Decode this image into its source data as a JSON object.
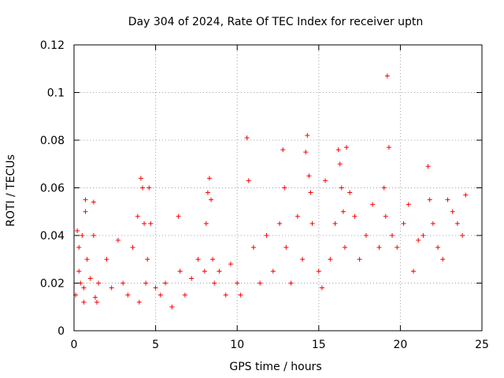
{
  "chart_data": {
    "type": "scatter",
    "title": "Day 304 of 2024, Rate Of TEC Index for receiver uptn",
    "xlabel": "GPS time / hours",
    "ylabel": "ROTI / TECUs",
    "xlim": [
      0,
      25
    ],
    "ylim": [
      0,
      0.12
    ],
    "x_ticks": [
      0,
      5,
      10,
      15,
      20,
      25
    ],
    "x_tick_labels": [
      "0",
      "5",
      "10",
      "15",
      "20",
      "25"
    ],
    "y_ticks": [
      0,
      0.02,
      0.04,
      0.06,
      0.08,
      0.1,
      0.12
    ],
    "y_tick_labels": [
      "0",
      "0.02",
      "0.04",
      "0.06",
      "0.08",
      "0.1",
      "0.12"
    ],
    "grid": true,
    "marker": "+",
    "series": [
      {
        "name": "ROTI",
        "color": "#ff0000",
        "x": [
          0.1,
          0.2,
          0.3,
          0.4,
          0.5,
          0.6,
          0.7,
          0.8,
          1.0,
          1.2,
          1.4,
          0.3,
          0.6,
          0.7,
          1.2,
          1.3,
          1.5,
          2.0,
          2.3,
          2.7,
          3.0,
          3.3,
          3.6,
          3.9,
          4.0,
          4.1,
          4.2,
          4.3,
          4.4,
          4.5,
          4.6,
          4.7,
          5.0,
          5.3,
          5.6,
          6.0,
          6.4,
          6.5,
          6.8,
          7.2,
          7.6,
          8.0,
          8.1,
          8.2,
          8.3,
          8.4,
          8.5,
          8.6,
          8.9,
          9.3,
          9.6,
          10.0,
          10.2,
          10.6,
          10.7,
          11.0,
          11.4,
          11.8,
          12.2,
          12.6,
          12.8,
          12.9,
          13.0,
          13.3,
          13.7,
          14.0,
          14.2,
          14.3,
          14.4,
          14.5,
          14.6,
          15.0,
          15.2,
          15.4,
          15.7,
          16.0,
          16.2,
          16.3,
          16.4,
          16.5,
          16.6,
          16.7,
          16.9,
          17.2,
          17.5,
          17.9,
          18.3,
          18.7,
          19.0,
          19.1,
          19.2,
          19.3,
          19.5,
          19.8,
          20.2,
          20.5,
          20.8,
          21.1,
          21.4,
          21.7,
          21.8,
          22.0,
          22.3,
          22.6,
          22.9,
          23.2,
          23.5,
          23.8,
          24.0
        ],
        "y": [
          0.015,
          0.042,
          0.035,
          0.02,
          0.04,
          0.018,
          0.055,
          0.03,
          0.022,
          0.054,
          0.012,
          0.025,
          0.012,
          0.05,
          0.04,
          0.014,
          0.02,
          0.03,
          0.018,
          0.038,
          0.02,
          0.015,
          0.035,
          0.048,
          0.012,
          0.064,
          0.06,
          0.045,
          0.02,
          0.03,
          0.06,
          0.045,
          0.018,
          0.015,
          0.02,
          0.01,
          0.048,
          0.025,
          0.015,
          0.022,
          0.03,
          0.025,
          0.045,
          0.058,
          0.064,
          0.055,
          0.03,
          0.02,
          0.025,
          0.015,
          0.028,
          0.02,
          0.015,
          0.081,
          0.063,
          0.035,
          0.02,
          0.04,
          0.025,
          0.045,
          0.076,
          0.06,
          0.035,
          0.02,
          0.048,
          0.03,
          0.075,
          0.082,
          0.065,
          0.058,
          0.045,
          0.025,
          0.018,
          0.063,
          0.03,
          0.045,
          0.076,
          0.07,
          0.06,
          0.05,
          0.035,
          0.077,
          0.058,
          0.048,
          0.03,
          0.04,
          0.053,
          0.035,
          0.06,
          0.048,
          0.107,
          0.077,
          0.04,
          0.035,
          0.045,
          0.053,
          0.025,
          0.038,
          0.04,
          0.069,
          0.055,
          0.045,
          0.035,
          0.03,
          0.055,
          0.05,
          0.045,
          0.04,
          0.057
        ]
      }
    ]
  }
}
